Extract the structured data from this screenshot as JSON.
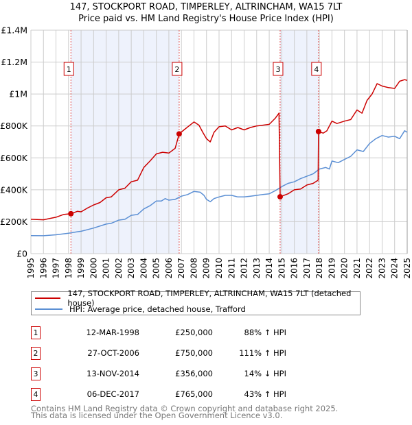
{
  "title": "147, STOCKPORT ROAD, TIMPERLEY, ALTRINCHAM, WA15 7LT",
  "subtitle": "Price paid vs. HM Land Registry's House Price Index (HPI)",
  "colors": {
    "property": "#cc0000",
    "hpi": "#5b8fd4",
    "shade": "#eef2fc",
    "grid": "#cccccc"
  },
  "chart_data": {
    "type": "line",
    "title": "147, STOCKPORT ROAD, TIMPERLEY, ALTRINCHAM, WA15 7LT",
    "subtitle": "Price paid vs. HM Land Registry's House Price Index (HPI)",
    "xlim": [
      1995,
      2025
    ],
    "ylim": [
      0,
      1400000
    ],
    "grid": true,
    "legend_placement": "below",
    "x_ticks": [
      "1995",
      "1996",
      "1997",
      "1998",
      "1999",
      "2000",
      "2001",
      "2002",
      "2003",
      "2004",
      "2005",
      "2006",
      "2007",
      "2008",
      "2009",
      "2010",
      "2011",
      "2012",
      "2013",
      "2014",
      "2015",
      "2016",
      "2017",
      "2018",
      "2019",
      "2020",
      "2021",
      "2022",
      "2023",
      "2024",
      "2025"
    ],
    "y_ticks": [
      {
        "value": 0,
        "label": "£0"
      },
      {
        "value": 200000,
        "label": "£200K"
      },
      {
        "value": 400000,
        "label": "£400K"
      },
      {
        "value": 600000,
        "label": "£600K"
      },
      {
        "value": 800000,
        "label": "£800K"
      },
      {
        "value": 1000000,
        "label": "£1M"
      },
      {
        "value": 1200000,
        "label": "£1.2M"
      },
      {
        "value": 1400000,
        "label": "£1.4M"
      }
    ],
    "series": [
      {
        "name": "147, STOCKPORT ROAD, TIMPERLEY, ALTRINCHAM, WA15 7LT (detached house)",
        "color": "#cc0000",
        "x": [
          1995,
          1996,
          1997,
          1997.6,
          1998.2,
          1998.7,
          1999,
          1999.5,
          2000,
          2000.5,
          2001,
          2001.4,
          2002,
          2002.5,
          2003,
          2003.5,
          2004,
          2004.5,
          2005,
          2005.5,
          2006,
          2006.5,
          2006.82,
          2007.2,
          2007.6,
          2008,
          2008.4,
          2008.7,
          2009,
          2009.3,
          2009.6,
          2010,
          2010.5,
          2011,
          2011.5,
          2012,
          2012.5,
          2013,
          2013.5,
          2014,
          2014.5,
          2014.78,
          2014.87,
          2015.5,
          2016,
          2016.5,
          2017,
          2017.5,
          2017.9,
          2017.93,
          2018.3,
          2018.6,
          2019,
          2019.4,
          2020,
          2020.5,
          2021,
          2021.4,
          2021.8,
          2022.2,
          2022.6,
          2023,
          2023.5,
          2024,
          2024.4,
          2024.8,
          2025
        ],
        "y": [
          215000,
          212000,
          228000,
          245000,
          250000,
          265000,
          262000,
          285000,
          305000,
          320000,
          350000,
          355000,
          400000,
          410000,
          450000,
          460000,
          540000,
          580000,
          625000,
          635000,
          630000,
          660000,
          750000,
          775000,
          800000,
          825000,
          805000,
          760000,
          720000,
          700000,
          760000,
          795000,
          800000,
          775000,
          790000,
          775000,
          790000,
          800000,
          805000,
          810000,
          850000,
          880000,
          356000,
          375000,
          400000,
          405000,
          430000,
          440000,
          460000,
          765000,
          755000,
          770000,
          830000,
          815000,
          830000,
          840000,
          900000,
          880000,
          960000,
          1000000,
          1065000,
          1050000,
          1040000,
          1035000,
          1080000,
          1090000,
          1085000
        ]
      },
      {
        "name": "HPI: Average price, detached house, Trafford",
        "color": "#5b8fd4",
        "x": [
          1995,
          1996,
          1997,
          1998,
          1998.7,
          1999,
          2000,
          2001,
          2001.4,
          2002,
          2002.5,
          2003,
          2003.5,
          2004,
          2004.5,
          2005,
          2005.4,
          2005.7,
          2006,
          2006.5,
          2007,
          2007.5,
          2008,
          2008.5,
          2008.8,
          2009,
          2009.3,
          2009.6,
          2010,
          2010.5,
          2011,
          2011.5,
          2012,
          2012.5,
          2013,
          2013.5,
          2014,
          2014.5,
          2015,
          2015.5,
          2016,
          2016.5,
          2017,
          2017.5,
          2018,
          2018.5,
          2018.8,
          2019,
          2019.5,
          2020,
          2020.5,
          2021,
          2021.5,
          2022,
          2022.5,
          2023,
          2023.5,
          2024,
          2024.4,
          2024.8,
          2025
        ],
        "y": [
          113000,
          112000,
          118000,
          128000,
          137000,
          140000,
          160000,
          185000,
          190000,
          210000,
          215000,
          240000,
          245000,
          280000,
          300000,
          330000,
          330000,
          345000,
          335000,
          340000,
          360000,
          370000,
          390000,
          385000,
          365000,
          340000,
          325000,
          345000,
          355000,
          365000,
          365000,
          355000,
          355000,
          360000,
          365000,
          370000,
          375000,
          395000,
          420000,
          440000,
          450000,
          470000,
          485000,
          500000,
          530000,
          540000,
          530000,
          580000,
          570000,
          590000,
          610000,
          650000,
          640000,
          690000,
          720000,
          740000,
          730000,
          735000,
          720000,
          770000,
          760000
        ]
      }
    ],
    "sales": [
      {
        "label": "1",
        "x": 1998.19,
        "price": 250000
      },
      {
        "label": "2",
        "x": 2006.82,
        "price": 750000
      },
      {
        "label": "3",
        "x": 2014.87,
        "price": 356000
      },
      {
        "label": "4",
        "x": 2017.93,
        "price": 765000
      }
    ],
    "shaded_ranges": [
      [
        1998.19,
        2006.82
      ],
      [
        2014.87,
        2017.93
      ]
    ]
  },
  "legend": {
    "property": "147, STOCKPORT ROAD, TIMPERLEY, ALTRINCHAM, WA15 7LT (detached house)",
    "hpi": "HPI: Average price, detached house, Trafford"
  },
  "transactions": [
    {
      "num": "1",
      "date": "12-MAR-1998",
      "price": "£250,000",
      "hpi": "88% ↑ HPI"
    },
    {
      "num": "2",
      "date": "27-OCT-2006",
      "price": "£750,000",
      "hpi": "111% ↑ HPI"
    },
    {
      "num": "3",
      "date": "13-NOV-2014",
      "price": "£356,000",
      "hpi": "14% ↓ HPI"
    },
    {
      "num": "4",
      "date": "06-DEC-2017",
      "price": "£765,000",
      "hpi": "43% ↑ HPI"
    }
  ],
  "footer": {
    "line1": "Contains HM Land Registry data © Crown copyright and database right 2025.",
    "line2": "This data is licensed under the Open Government Licence v3.0."
  }
}
